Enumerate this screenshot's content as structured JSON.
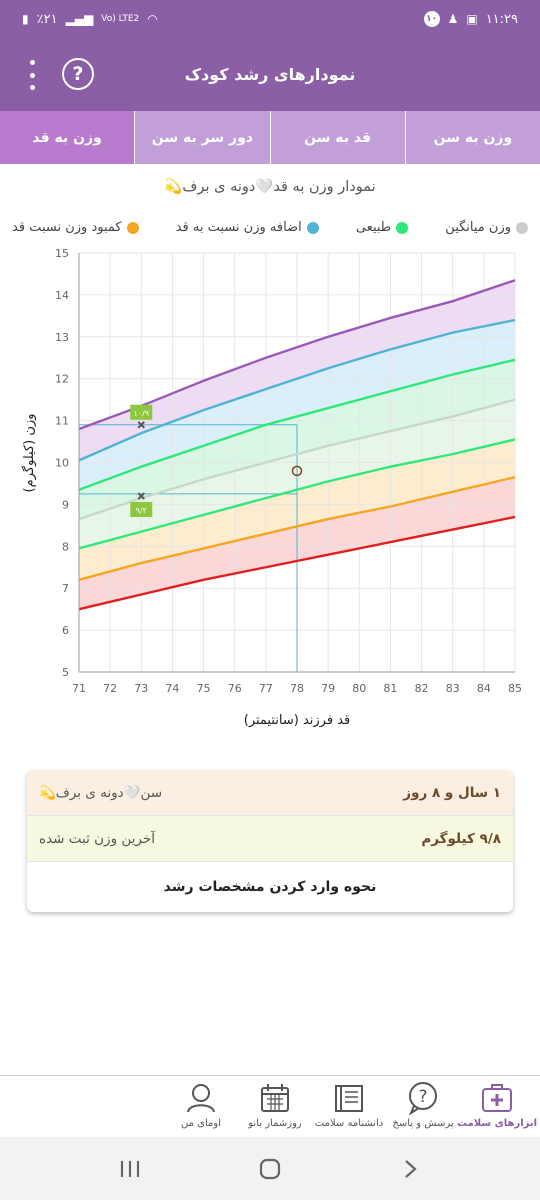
{
  "status_bar": {
    "time": "۱۱:۲۹",
    "battery": "٪۲۱",
    "notification_count": "۱۰",
    "network": "Vo) LTE2"
  },
  "header": {
    "title": "نمودارهای رشد کودک"
  },
  "tabs": [
    {
      "label": "وزن به سن"
    },
    {
      "label": "قد به سن"
    },
    {
      "label": "دور سر به سن"
    },
    {
      "label": "وزن به قد"
    }
  ],
  "chart_title": "نمودار وزن به قد🤍دونه ی برف💫",
  "legend": [
    {
      "label": "کمبود وزن نسبت قد",
      "color": "#f5a623"
    },
    {
      "label": "اضافه وزن نسبت به قد",
      "color": "#4fb3d4"
    },
    {
      "label": "طبیعی",
      "color": "#2ee87a"
    },
    {
      "label": "وزن میانگین",
      "color": "#cccccc"
    }
  ],
  "chart_data": {
    "type": "line",
    "xlabel": "قد فرزند (سانتیمتر)",
    "ylabel": "وزن (کیلوگرم)",
    "xlim": [
      71,
      85
    ],
    "ylim": [
      5,
      15
    ],
    "x_ticks": [
      "71",
      "72",
      "73",
      "74",
      "75",
      "76",
      "77",
      "78",
      "79",
      "80",
      "81",
      "82",
      "83",
      "84",
      "85"
    ],
    "y_ticks": [
      "5",
      "6",
      "7",
      "8",
      "9",
      "10",
      "11",
      "12",
      "13",
      "14",
      "15"
    ],
    "grid": true,
    "x": [
      71,
      73,
      75,
      77,
      79,
      81,
      83,
      85
    ],
    "series": [
      {
        "color": "#9b59b6",
        "values": [
          10.8,
          11.35,
          11.95,
          12.5,
          13.0,
          13.45,
          13.85,
          14.35
        ]
      },
      {
        "color": "#4fb3d4",
        "values": [
          10.05,
          10.7,
          11.25,
          11.75,
          12.25,
          12.7,
          13.1,
          13.4
        ]
      },
      {
        "color": "#2ee87a",
        "values": [
          9.35,
          9.9,
          10.4,
          10.9,
          11.3,
          11.7,
          12.1,
          12.45
        ]
      },
      {
        "color": "#c8d8c8",
        "values": [
          8.65,
          9.15,
          9.6,
          10.0,
          10.4,
          10.75,
          11.1,
          11.5
        ]
      },
      {
        "color": "#2ee87a",
        "values": [
          7.95,
          8.35,
          8.75,
          9.15,
          9.55,
          9.9,
          10.2,
          10.55
        ]
      },
      {
        "color": "#f5a623",
        "values": [
          7.2,
          7.6,
          7.95,
          8.3,
          8.65,
          8.95,
          9.3,
          9.65
        ]
      },
      {
        "color": "#e02020",
        "values": [
          6.5,
          6.85,
          7.2,
          7.5,
          7.8,
          8.1,
          8.4,
          8.7
        ]
      }
    ],
    "band_colors": [
      "#ead6f2",
      "#d3ecf8",
      "#d4f6e2",
      "#e4f4e6",
      "#fde9c8",
      "#fbd0d0"
    ],
    "markers": [
      {
        "x": 73,
        "y": 10.9,
        "label": "۱۰/۹"
      },
      {
        "x": 73,
        "y": 9.2,
        "label": "۹/۲"
      }
    ],
    "current_point": {
      "x": 78,
      "y": 9.8
    },
    "reference_lines": [
      {
        "from_x": 71,
        "y": 10.9,
        "to_x": 78
      },
      {
        "from_x": 71,
        "y": 9.25,
        "to_x": 78
      }
    ]
  },
  "info": {
    "age_label": "سن🤍دونه ی برف💫",
    "age_value": "۱ سال و ۸ روز",
    "weight_label": "آخرین وزن ثبت شده",
    "weight_value": "۹/۸ کیلوگرم",
    "howto_link": "نحوه وارد کردن مشخصات رشد"
  },
  "bottom_nav": [
    {
      "label": "ابزارهای سلامت",
      "icon": "medkit-icon"
    },
    {
      "label": "پرسش و پاسخ",
      "icon": "question-bubble-icon"
    },
    {
      "label": "دانشنامه سلامت",
      "icon": "book-icon"
    },
    {
      "label": "روزشمار بانو",
      "icon": "calendar-icon"
    },
    {
      "label": "اومای من",
      "icon": "user-avatar-icon"
    }
  ]
}
